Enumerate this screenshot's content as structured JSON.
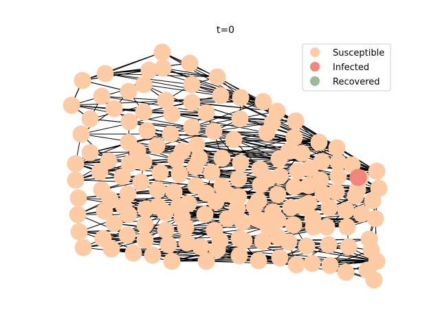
{
  "figure": {
    "title": "t=0"
  },
  "legend": {
    "placement": "top-right",
    "items": [
      {
        "label": "Susceptible",
        "color": "#fdcba4"
      },
      {
        "label": "Infected",
        "color": "#f4857a"
      },
      {
        "label": "Recovered",
        "color": "#99bb97"
      }
    ]
  },
  "graph": {
    "edge_color": "#000000",
    "node_states": {
      "susceptible_count": 169,
      "infected_count": 1,
      "recovered_count": 0
    }
  }
}
